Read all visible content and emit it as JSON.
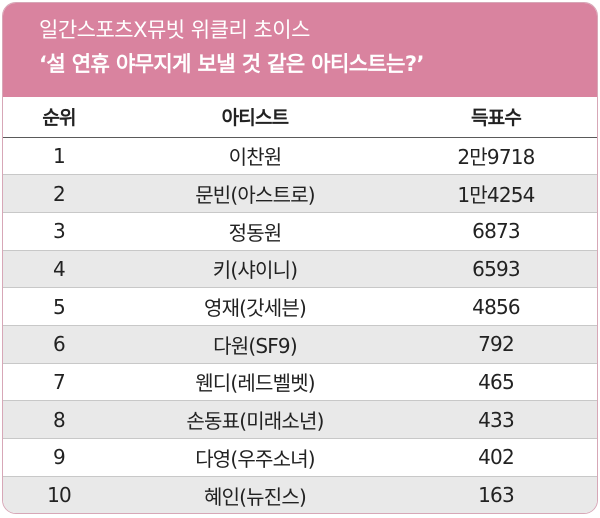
{
  "header": {
    "line1": "일간스포츠X뮤빗 위클리 초이스",
    "line2": "‘설 연휴 야무지게 보낼 것 같은 아티스트는?’"
  },
  "table": {
    "columns": [
      "순위",
      "아티스트",
      "득표수"
    ],
    "rows": [
      {
        "rank": "1",
        "artist": "이찬원",
        "votes": "2만9718"
      },
      {
        "rank": "2",
        "artist": "문빈(아스트로)",
        "votes": "1만4254"
      },
      {
        "rank": "3",
        "artist": "정동원",
        "votes": "6873"
      },
      {
        "rank": "4",
        "artist": "키(샤이니)",
        "votes": "6593"
      },
      {
        "rank": "5",
        "artist": "영재(갓세븐)",
        "votes": "4856"
      },
      {
        "rank": "6",
        "artist": "다원(SF9)",
        "votes": "792"
      },
      {
        "rank": "7",
        "artist": "웬디(레드벨벳)",
        "votes": "465"
      },
      {
        "rank": "8",
        "artist": "손동표(미래소년)",
        "votes": "433"
      },
      {
        "rank": "9",
        "artist": "다영(우주소녀)",
        "votes": "402"
      },
      {
        "rank": "10",
        "artist": "혜인(뉴진스)",
        "votes": "163"
      }
    ]
  },
  "colors": {
    "header_bg": "#d9839f",
    "header_text": "#ffffff",
    "stripe": "#e9e9e9",
    "border": "#d7a7b7"
  }
}
